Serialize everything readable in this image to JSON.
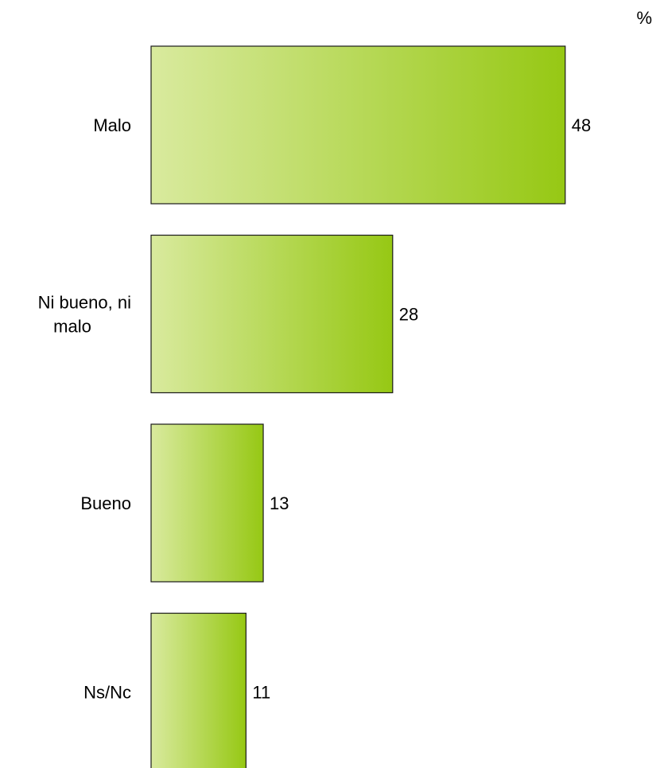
{
  "chart_data": {
    "type": "bar",
    "orientation": "horizontal",
    "unit": "%",
    "categories": [
      [
        "Malo"
      ],
      [
        "Ni bueno, ni",
        "malo"
      ],
      [
        "Bueno"
      ],
      [
        "Ns/Nc"
      ]
    ],
    "values": [
      48,
      28,
      13,
      11
    ],
    "value_labels": [
      "48",
      "28",
      "13",
      "11"
    ],
    "colors": {
      "gradient_start": "#d9ea9e",
      "gradient_end": "#96c814",
      "border": "#1a1a1a"
    }
  }
}
